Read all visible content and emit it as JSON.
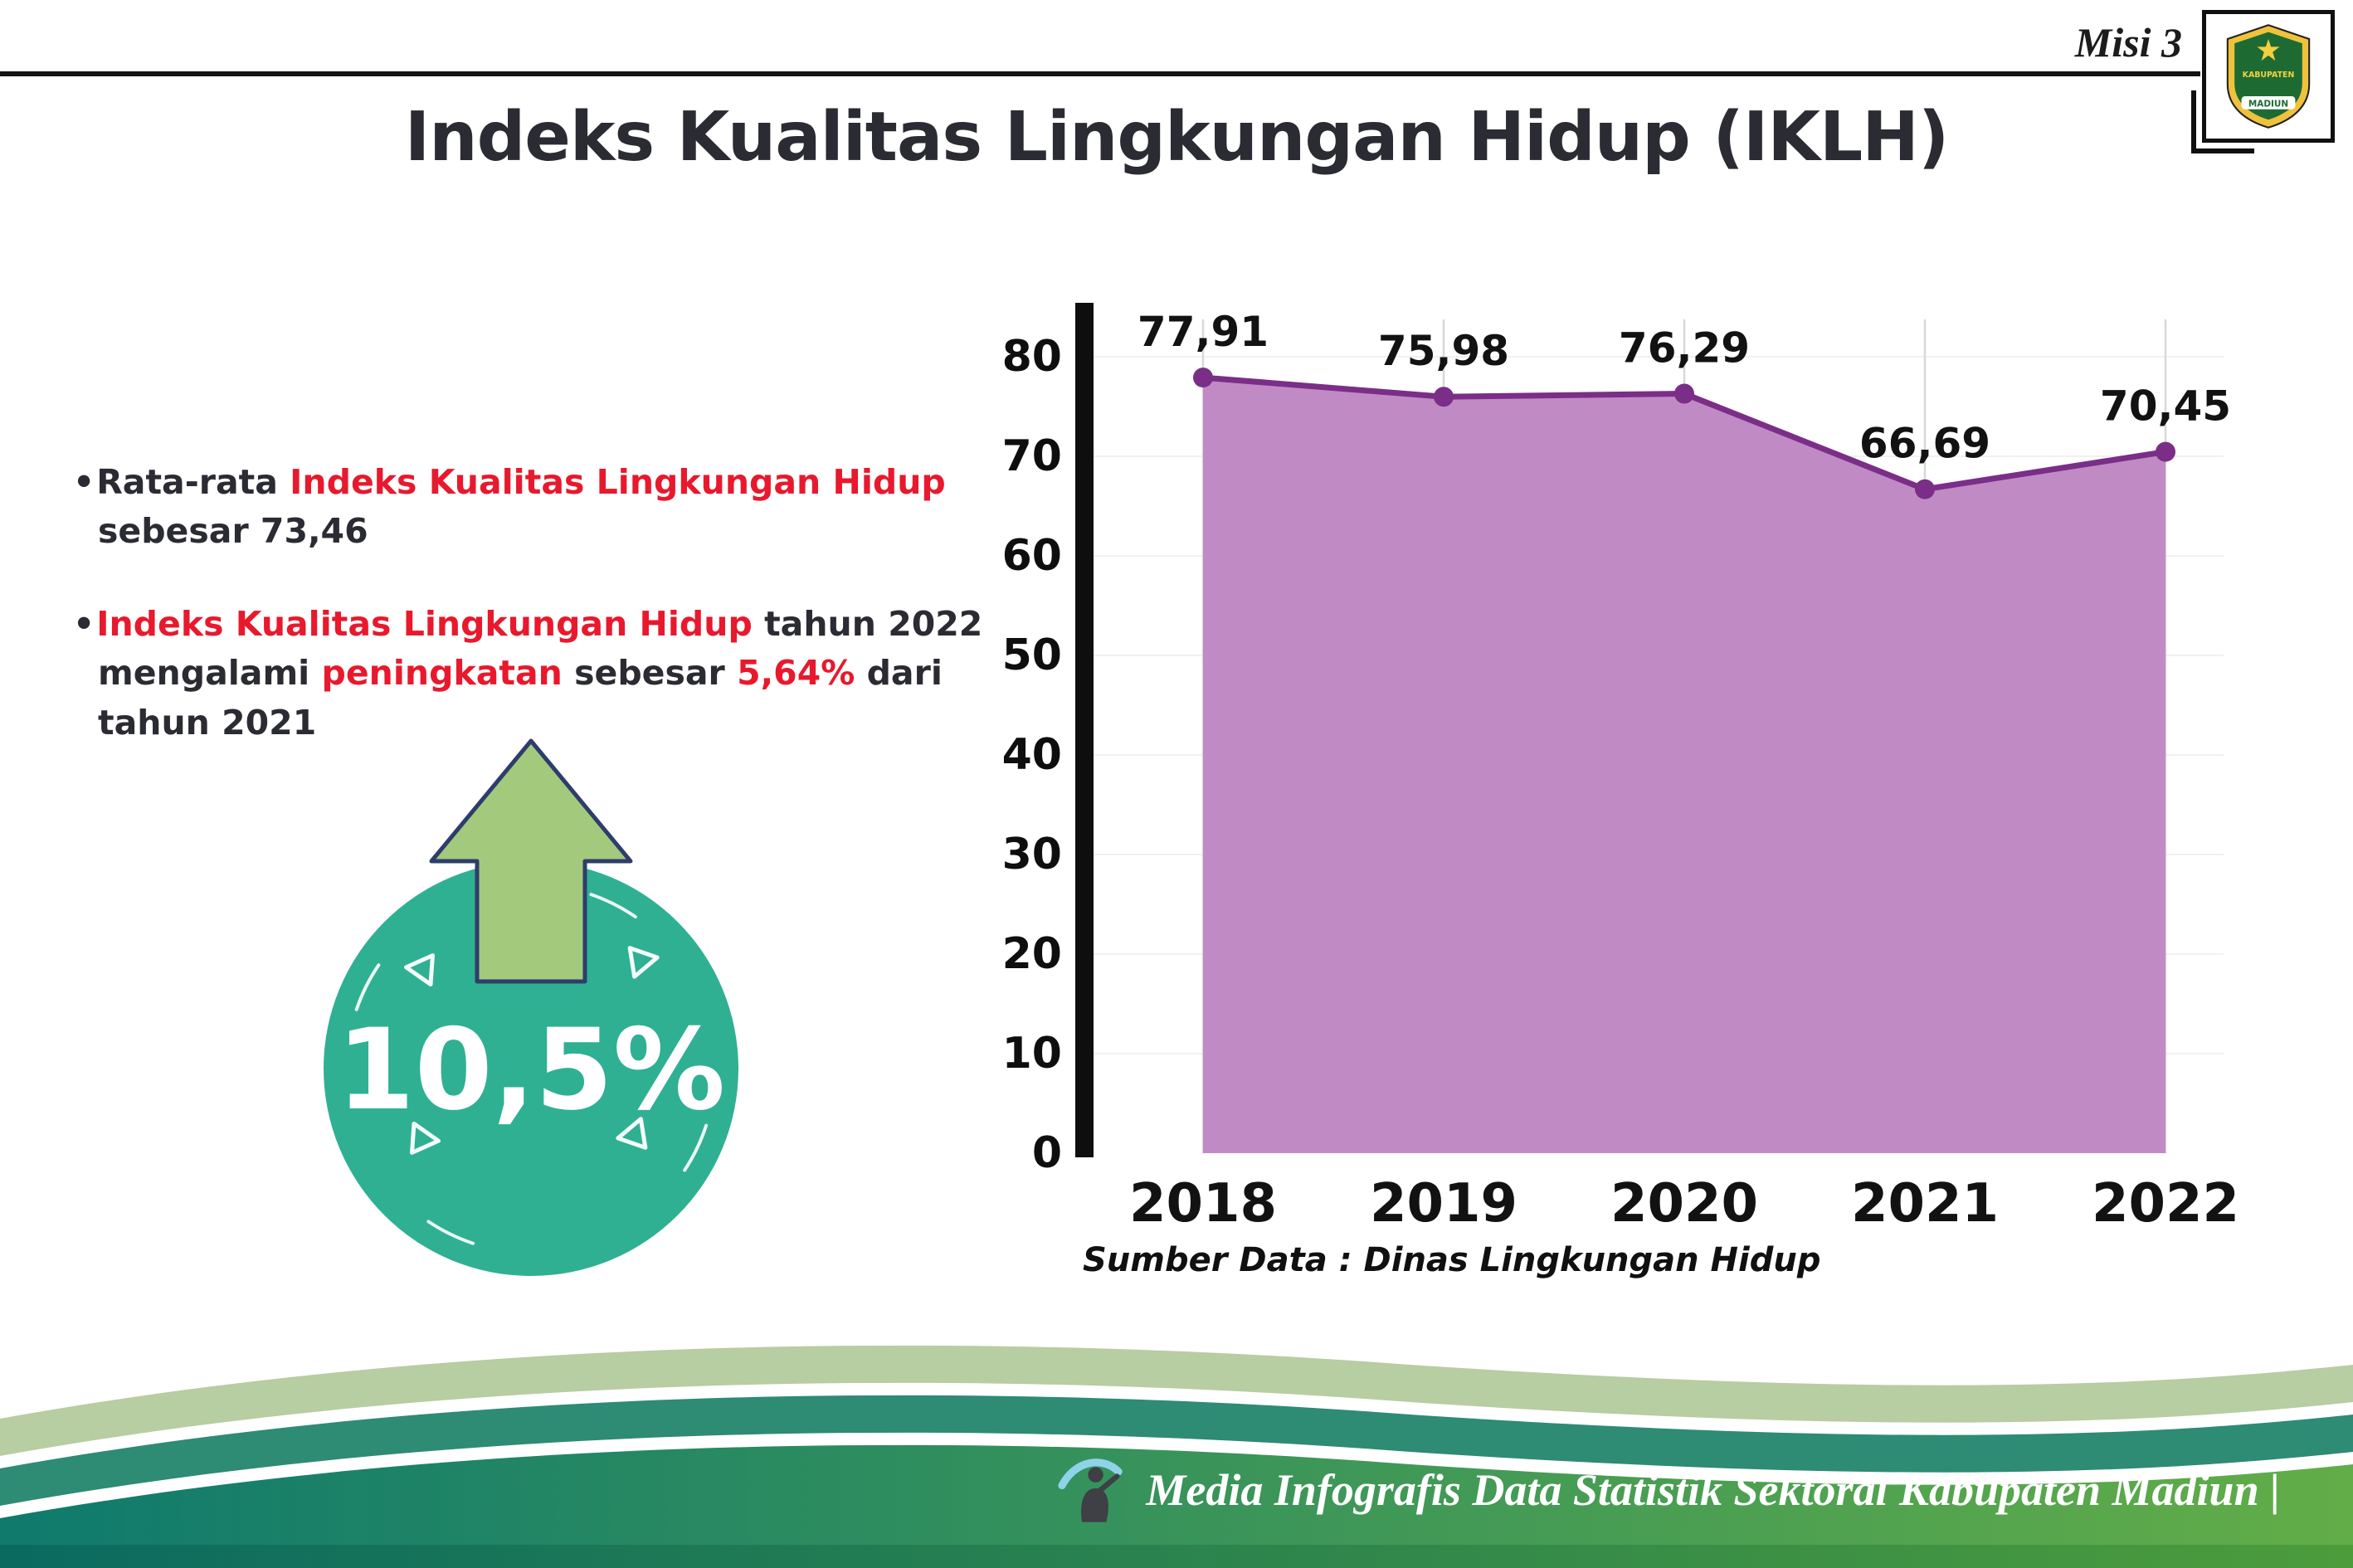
{
  "header": {
    "misi": "Misi 3",
    "title": "Indeks Kualitas Lingkungan Hidup (IKLH)"
  },
  "logo": {
    "name": "Lambang Kabupaten Madiun",
    "top_text": "KABUPATEN",
    "bottom_text": "MADIUN"
  },
  "bullets": [
    {
      "marker": "•",
      "segments": [
        {
          "text": "Rata-rata ",
          "red": false
        },
        {
          "text": "Indeks Kualitas Lingkungan Hidup",
          "red": true
        },
        {
          "text": " sebesar 73,46",
          "red": false
        }
      ]
    },
    {
      "marker": "•",
      "segments": [
        {
          "text": "Indeks Kualitas Lingkungan Hidup",
          "red": true
        },
        {
          "text": " tahun 2022 mengalami ",
          "red": false
        },
        {
          "text": "peningkatan",
          "red": true
        },
        {
          "text": " sebesar ",
          "red": false
        },
        {
          "text": "5,64%",
          "red": true
        },
        {
          "text": " dari tahun 2021",
          "red": false
        }
      ]
    }
  ],
  "badge": {
    "value": "10,5%"
  },
  "chart_data": {
    "type": "area",
    "categories": [
      "2018",
      "2019",
      "2020",
      "2021",
      "2022"
    ],
    "values": [
      77.91,
      75.98,
      76.29,
      66.69,
      70.45
    ],
    "value_labels": [
      "77,91",
      "75,98",
      "76,29",
      "66,69",
      "70,45"
    ],
    "ylim": [
      0,
      80
    ],
    "yticks": [
      0,
      10,
      20,
      30,
      40,
      50,
      60,
      70,
      80
    ],
    "grid": true,
    "legend": "none",
    "fill_color": "#c08bc5",
    "line_color": "#7b2e87",
    "source": "Sumber Data : Dinas Lingkungan Hidup"
  },
  "footer": {
    "text": "Media Infografis Data Statistik Sektoral Kabupaten Madiun |"
  },
  "colors": {
    "ink": "#2b2b33",
    "red": "#e8192d",
    "teal": "#2fb093",
    "arrow_green": "#a3ca7c",
    "arrow_outline": "#2e3d6b",
    "sage_band": "#b7cda2",
    "teal_band": "#2e8b74",
    "grad_left": "#0f7a6d",
    "grad_right": "#62ad48",
    "strip_left": "#0a6a60",
    "strip_right": "#4c9c3c"
  }
}
